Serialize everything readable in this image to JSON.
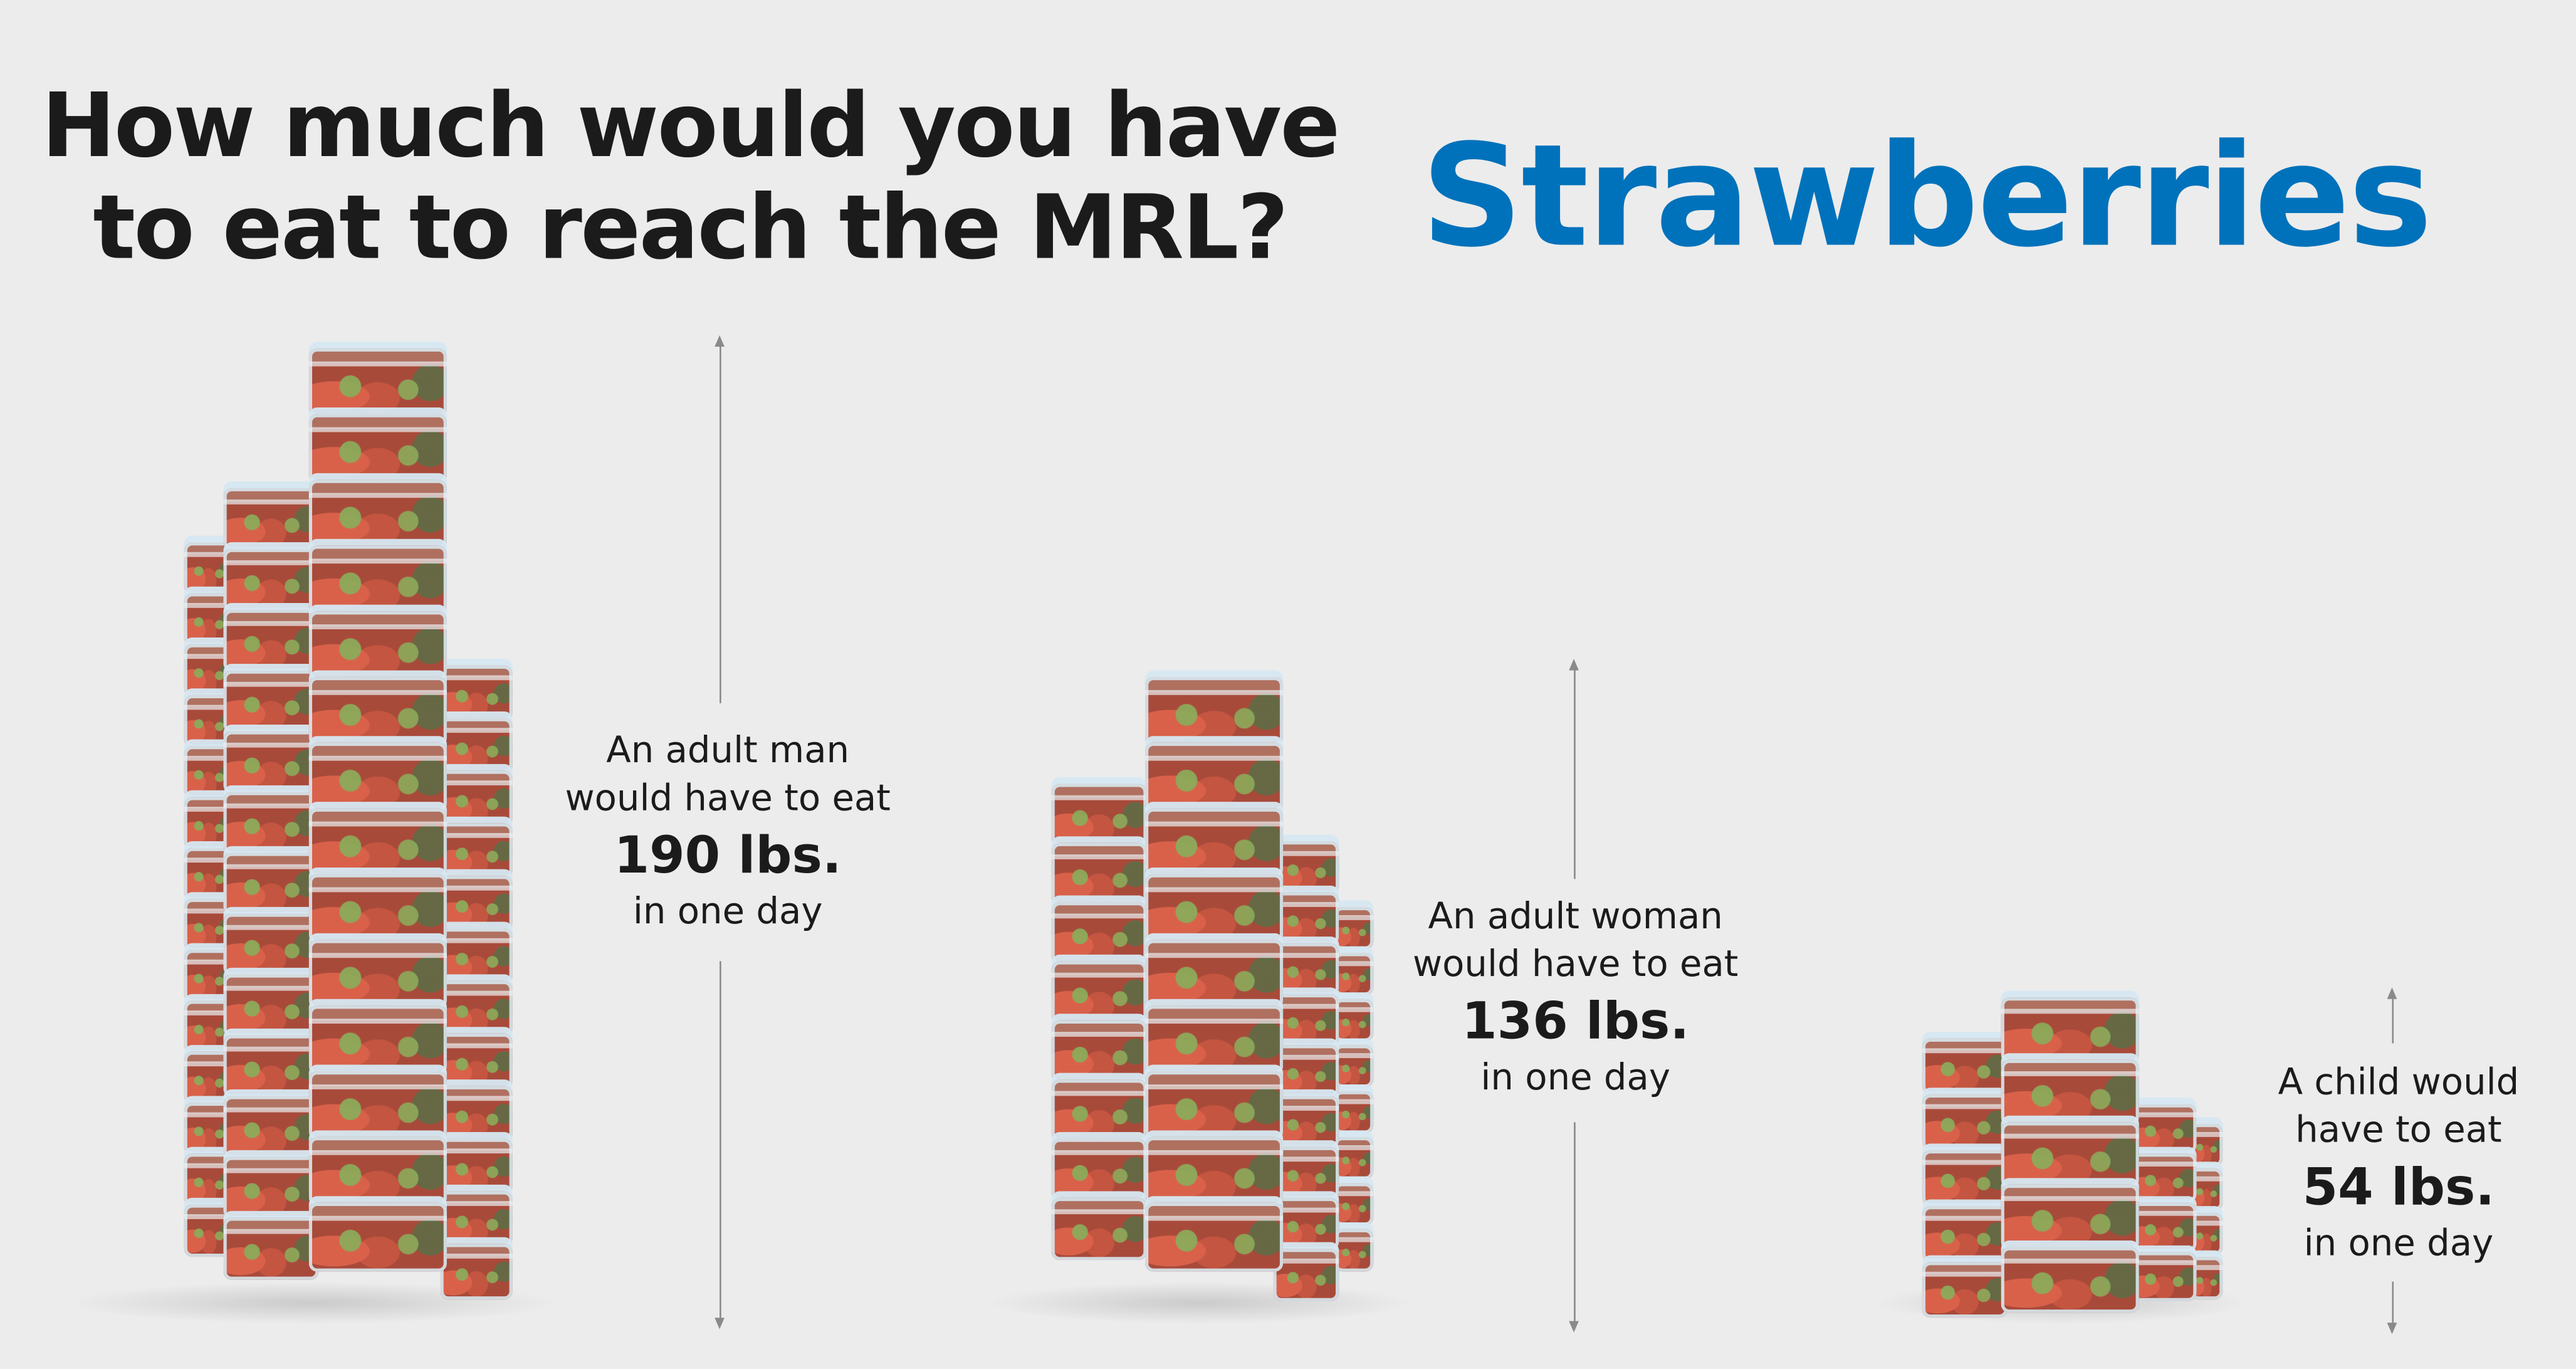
{
  "header": {
    "question_line1": "How much would you have",
    "question_line2": "to eat to reach the MRL?",
    "fruit": "Strawberries",
    "fruit_color": "#0072bb"
  },
  "groups": [
    {
      "id": "man",
      "line1": "An adult man",
      "line2": "would have to eat",
      "amount": "190 lbs.",
      "period": "in one day",
      "lbs": 190
    },
    {
      "id": "woman",
      "line1": "An adult woman",
      "line2": "would have to eat",
      "amount": "136 lbs.",
      "period": "in one day",
      "lbs": 136
    },
    {
      "id": "child",
      "line1": "A child would",
      "line2": "have to eat",
      "amount": "54 lbs.",
      "period": "in one day",
      "lbs": 54
    }
  ]
}
